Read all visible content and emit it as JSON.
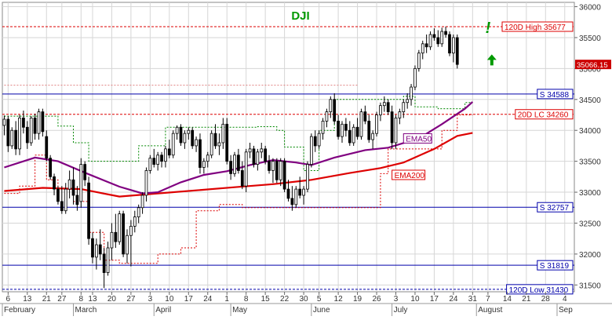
{
  "chart_data": {
    "type": "candlestick",
    "title": "DJI",
    "symbol": "DJI",
    "colors": {
      "title": "#009900",
      "background": "#ffffff",
      "frame": "#888888",
      "grid": "#d6d6d6",
      "bull_body": "#ffffff",
      "bear_body": "#000000",
      "candle_outline": "#000000",
      "ema50": "#800080",
      "ema200": "#dd0000",
      "support_line": "#0000aa",
      "resistance_line": "#dd0000",
      "trail_green": "#008800",
      "trail_red": "#dd0000",
      "arrow": "#009900",
      "price_tag_bg": "#cc0000"
    },
    "y_axis": {
      "min": 31400,
      "max": 36100,
      "ticks": [
        31500,
        32000,
        32500,
        33000,
        33500,
        34000,
        34500,
        35000,
        35500,
        36000
      ],
      "side": "right",
      "grid": true
    },
    "x_axis": {
      "ticks": [
        {
          "label": "6",
          "i": 1
        },
        {
          "label": "13",
          "i": 6
        },
        {
          "label": "21",
          "i": 11
        },
        {
          "label": "27",
          "i": 15
        },
        {
          "label": "8",
          "i": 20
        },
        {
          "label": "13",
          "i": 23
        },
        {
          "label": "20",
          "i": 28
        },
        {
          "label": "27",
          "i": 33
        },
        {
          "label": "3",
          "i": 38
        },
        {
          "label": "10",
          "i": 43
        },
        {
          "label": "17",
          "i": 48
        },
        {
          "label": "24",
          "i": 53
        },
        {
          "label": "1",
          "i": 58
        },
        {
          "label": "8",
          "i": 63
        },
        {
          "label": "15",
          "i": 68
        },
        {
          "label": "22",
          "i": 73
        },
        {
          "label": "30",
          "i": 78
        },
        {
          "label": "5",
          "i": 82
        },
        {
          "label": "12",
          "i": 87
        },
        {
          "label": "19",
          "i": 92
        },
        {
          "label": "26",
          "i": 97
        },
        {
          "label": "3",
          "i": 102
        },
        {
          "label": "10",
          "i": 107
        },
        {
          "label": "17",
          "i": 112
        },
        {
          "label": "24",
          "i": 117
        },
        {
          "label": "31",
          "i": 122
        },
        {
          "label": "7",
          "i": 126
        },
        {
          "label": "14",
          "i": 131
        },
        {
          "label": "21",
          "i": 136
        },
        {
          "label": "28",
          "i": 141
        },
        {
          "label": "4",
          "i": 146
        }
      ],
      "months": [
        {
          "label": "February",
          "i": 0
        },
        {
          "label": "March",
          "i": 18
        },
        {
          "label": "April",
          "i": 39
        },
        {
          "label": "May",
          "i": 59
        },
        {
          "label": "June",
          "i": 80
        },
        {
          "label": "July",
          "i": 101
        },
        {
          "label": "August",
          "i": 123
        },
        {
          "label": "Sep",
          "i": 144
        }
      ],
      "total_slots": 149
    },
    "last_price_label": "35066.15",
    "hlines": [
      {
        "label": "120D High 35677",
        "value": 35677,
        "style": "dashed",
        "color": "#dd0000",
        "label_color": "#dd0000"
      },
      {
        "label": "S 34588",
        "value": 34588,
        "style": "solid",
        "color": "#0000aa",
        "label_color": "#0000aa"
      },
      {
        "label": "20D LC 34260",
        "value": 34260,
        "style": "dashed",
        "color": "#dd0000",
        "label_color": "#dd0000"
      },
      {
        "label": "S 32757",
        "value": 32757,
        "style": "solid",
        "color": "#0000aa",
        "label_color": "#0000aa"
      },
      {
        "label": "S 31819",
        "value": 31819,
        "style": "solid",
        "color": "#0000aa",
        "label_color": "#0000aa"
      },
      {
        "label": "120D Low 31430",
        "value": 31430,
        "style": "dashed",
        "color": "#0000aa",
        "label_color": "#0000aa"
      }
    ],
    "ohlc": [
      [
        34080,
        34240,
        33920,
        34180
      ],
      [
        34180,
        34230,
        33650,
        33750
      ],
      [
        33750,
        34050,
        33700,
        34000
      ],
      [
        34000,
        34150,
        33600,
        33700
      ],
      [
        33700,
        34250,
        33600,
        34200
      ],
      [
        34200,
        34320,
        33950,
        34050
      ],
      [
        34050,
        34150,
        33700,
        33800
      ],
      [
        33800,
        34230,
        33750,
        34200
      ],
      [
        34200,
        34270,
        33850,
        33950
      ],
      [
        33950,
        34350,
        33850,
        34300
      ],
      [
        34300,
        34350,
        33900,
        33980
      ],
      [
        33900,
        34000,
        33500,
        33550
      ],
      [
        33550,
        33600,
        33200,
        33250
      ],
      [
        33250,
        33300,
        32950,
        33050
      ],
      [
        33050,
        33100,
        32800,
        32850
      ],
      [
        32850,
        33100,
        32650,
        32700
      ],
      [
        32700,
        33150,
        32650,
        33050
      ],
      [
        33050,
        33350,
        32900,
        33200
      ],
      [
        33200,
        33400,
        32800,
        32950
      ],
      [
        32950,
        33100,
        32700,
        32800
      ],
      [
        32850,
        33550,
        32750,
        33450
      ],
      [
        33450,
        33500,
        33100,
        33200
      ],
      [
        33150,
        33250,
        32150,
        32250
      ],
      [
        32250,
        32350,
        31850,
        31950
      ],
      [
        31950,
        32250,
        31750,
        32150
      ],
      [
        32150,
        32400,
        31900,
        32000
      ],
      [
        32000,
        32100,
        31450,
        31700
      ],
      [
        31700,
        32200,
        31650,
        32100
      ],
      [
        32100,
        32500,
        31900,
        32350
      ],
      [
        32350,
        32650,
        32100,
        32200
      ],
      [
        32200,
        32700,
        32150,
        32650
      ],
      [
        32650,
        32700,
        31950,
        32000
      ],
      [
        32000,
        32400,
        31850,
        32300
      ],
      [
        32300,
        32550,
        31800,
        32450
      ],
      [
        32450,
        32700,
        32350,
        32600
      ],
      [
        32600,
        32800,
        32500,
        32750
      ],
      [
        32750,
        33000,
        32650,
        32950
      ],
      [
        32950,
        33400,
        32850,
        33350
      ],
      [
        33350,
        33600,
        33300,
        33550
      ],
      [
        33550,
        33700,
        33400,
        33450
      ],
      [
        33450,
        33650,
        33350,
        33600
      ],
      [
        33600,
        33650,
        33400,
        33500
      ],
      [
        33500,
        33750,
        33400,
        33700
      ],
      [
        33700,
        33850,
        33550,
        33600
      ],
      [
        33600,
        34000,
        33550,
        33950
      ],
      [
        33950,
        34080,
        33850,
        34050
      ],
      [
        34050,
        34100,
        33750,
        33800
      ],
      [
        33800,
        34000,
        33700,
        33950
      ],
      [
        33950,
        34050,
        33850,
        34000
      ],
      [
        34000,
        34050,
        33700,
        33750
      ],
      [
        33750,
        33900,
        33650,
        33850
      ],
      [
        33850,
        33950,
        33300,
        33400
      ],
      [
        33400,
        33550,
        33300,
        33500
      ],
      [
        33500,
        33650,
        33400,
        33600
      ],
      [
        33600,
        34000,
        33550,
        33950
      ],
      [
        33950,
        34100,
        33700,
        33750
      ],
      [
        33750,
        33950,
        33600,
        33800
      ],
      [
        33800,
        34200,
        33700,
        34100
      ],
      [
        34100,
        34200,
        33450,
        33500
      ],
      [
        33500,
        33600,
        33200,
        33300
      ],
      [
        33300,
        33650,
        33250,
        33600
      ],
      [
        33600,
        33700,
        33300,
        33350
      ],
      [
        33350,
        33500,
        33050,
        33100
      ],
      [
        33100,
        33700,
        33000,
        33650
      ],
      [
        33650,
        33800,
        33550,
        33700
      ],
      [
        33700,
        33750,
        33400,
        33450
      ],
      [
        33450,
        33700,
        33350,
        33650
      ],
      [
        33650,
        33800,
        33550,
        33700
      ],
      [
        33700,
        33750,
        33450,
        33500
      ],
      [
        33500,
        33600,
        33300,
        33350
      ],
      [
        33350,
        33550,
        33150,
        33500
      ],
      [
        33500,
        33550,
        33150,
        33200
      ],
      [
        33200,
        33550,
        33100,
        33500
      ],
      [
        33500,
        33550,
        33000,
        33050
      ],
      [
        33050,
        33200,
        32850,
        32900
      ],
      [
        32900,
        33100,
        32700,
        32800
      ],
      [
        32800,
        33100,
        32750,
        33050
      ],
      [
        33050,
        33250,
        32900,
        32950
      ],
      [
        32950,
        33100,
        32800,
        33050
      ],
      [
        33050,
        33500,
        33000,
        33450
      ],
      [
        33450,
        33950,
        33400,
        33900
      ],
      [
        33900,
        34000,
        33650,
        33750
      ],
      [
        33750,
        34000,
        33700,
        33950
      ],
      [
        33950,
        34200,
        33850,
        34150
      ],
      [
        34150,
        34350,
        34050,
        34300
      ],
      [
        34300,
        34550,
        34200,
        34500
      ],
      [
        34500,
        34600,
        34100,
        34150
      ],
      [
        34150,
        34250,
        33850,
        33900
      ],
      [
        33900,
        34150,
        33800,
        34100
      ],
      [
        34100,
        34200,
        33900,
        34000
      ],
      [
        34000,
        34150,
        33750,
        33800
      ],
      [
        33800,
        34100,
        33750,
        34050
      ],
      [
        34050,
        34200,
        33850,
        33900
      ],
      [
        33900,
        34350,
        33850,
        34300
      ],
      [
        34300,
        34400,
        34100,
        34150
      ],
      [
        34150,
        34250,
        33800,
        33850
      ],
      [
        33850,
        34000,
        33700,
        33950
      ],
      [
        33950,
        34300,
        33900,
        34250
      ],
      [
        34250,
        34450,
        34150,
        34400
      ],
      [
        34400,
        34550,
        34300,
        34450
      ],
      [
        34450,
        34500,
        34250,
        34300
      ],
      [
        34300,
        34400,
        33700,
        33800
      ],
      [
        33800,
        34250,
        33700,
        34200
      ],
      [
        34200,
        34350,
        34100,
        34300
      ],
      [
        34300,
        34500,
        34200,
        34450
      ],
      [
        34450,
        34600,
        34350,
        34500
      ],
      [
        34500,
        34750,
        34400,
        34700
      ],
      [
        34700,
        35050,
        34650,
        35000
      ],
      [
        35000,
        35300,
        34950,
        35250
      ],
      [
        35250,
        35450,
        35150,
        35400
      ],
      [
        35400,
        35550,
        35250,
        35350
      ],
      [
        35350,
        35600,
        35300,
        35550
      ],
      [
        35550,
        35650,
        35450,
        35500
      ],
      [
        35500,
        35620,
        35350,
        35400
      ],
      [
        35400,
        35660,
        35350,
        35600
      ],
      [
        35600,
        35677,
        35500,
        35550
      ],
      [
        35550,
        35600,
        35200,
        35250
      ],
      [
        35250,
        35550,
        35100,
        35500
      ],
      [
        35500,
        35550,
        35000,
        35066.15
      ]
    ],
    "ema50": [
      [
        0,
        33400
      ],
      [
        8,
        33560
      ],
      [
        14,
        33500
      ],
      [
        22,
        33290
      ],
      [
        30,
        33090
      ],
      [
        36,
        32980
      ],
      [
        40,
        33000
      ],
      [
        46,
        33160
      ],
      [
        52,
        33280
      ],
      [
        58,
        33340
      ],
      [
        64,
        33440
      ],
      [
        70,
        33520
      ],
      [
        76,
        33480
      ],
      [
        80,
        33440
      ],
      [
        86,
        33560
      ],
      [
        94,
        33680
      ],
      [
        100,
        33720
      ],
      [
        108,
        33870
      ],
      [
        114,
        34100
      ],
      [
        120,
        34350
      ],
      [
        122,
        34460
      ]
    ],
    "ema200": [
      [
        0,
        33020
      ],
      [
        10,
        33070
      ],
      [
        20,
        33050
      ],
      [
        30,
        32930
      ],
      [
        40,
        32980
      ],
      [
        50,
        33030
      ],
      [
        60,
        33080
      ],
      [
        70,
        33130
      ],
      [
        80,
        33200
      ],
      [
        90,
        33310
      ],
      [
        98,
        33390
      ],
      [
        104,
        33480
      ],
      [
        112,
        33700
      ],
      [
        118,
        33910
      ],
      [
        122,
        33960
      ]
    ],
    "trail_green": [
      [
        0,
        34230
      ],
      [
        14,
        34230
      ],
      [
        14,
        34070
      ],
      [
        18,
        34070
      ],
      [
        18,
        33800
      ],
      [
        22,
        33800
      ],
      [
        22,
        33500
      ],
      [
        35,
        33500
      ],
      [
        35,
        33750
      ],
      [
        42,
        33750
      ],
      [
        42,
        34050
      ],
      [
        66,
        34050
      ],
      [
        66,
        34060
      ],
      [
        71,
        34060
      ],
      [
        71,
        34000
      ],
      [
        73,
        34000
      ],
      [
        73,
        33730
      ],
      [
        78,
        33730
      ],
      [
        78,
        33350
      ],
      [
        82,
        33350
      ],
      [
        82,
        34000
      ],
      [
        86,
        34000
      ],
      [
        86,
        34500
      ],
      [
        104,
        34500
      ],
      [
        104,
        34550
      ],
      [
        107,
        34550
      ],
      [
        107,
        34380
      ],
      [
        113,
        34380
      ],
      [
        113,
        34350
      ],
      [
        120,
        34350
      ],
      [
        120,
        34450
      ],
      [
        122,
        34450
      ]
    ],
    "trail_red": [
      [
        0,
        32980
      ],
      [
        4,
        32980
      ],
      [
        4,
        33100
      ],
      [
        8,
        33100
      ],
      [
        8,
        33600
      ],
      [
        11,
        33600
      ],
      [
        11,
        33200
      ],
      [
        14,
        33200
      ],
      [
        14,
        33050
      ],
      [
        18,
        33050
      ],
      [
        18,
        32850
      ],
      [
        22,
        32850
      ],
      [
        22,
        32350
      ],
      [
        26,
        32350
      ],
      [
        26,
        31900
      ],
      [
        30,
        31900
      ],
      [
        30,
        31850
      ],
      [
        40,
        31850
      ],
      [
        40,
        32000
      ],
      [
        46,
        32000
      ],
      [
        46,
        32100
      ],
      [
        50,
        32100
      ],
      [
        50,
        32700
      ],
      [
        56,
        32700
      ],
      [
        56,
        32800
      ],
      [
        62,
        32800
      ],
      [
        62,
        32750
      ],
      [
        98,
        32750
      ],
      [
        98,
        33300
      ],
      [
        100,
        33300
      ],
      [
        100,
        33700
      ],
      [
        114,
        33700
      ],
      [
        114,
        34000
      ],
      [
        118,
        34000
      ],
      [
        118,
        34250
      ],
      [
        122,
        34250
      ]
    ],
    "ref_dashed_line": {
      "from": 0,
      "to": 92,
      "value": 34730
    },
    "series_labels": [
      {
        "name": "EMA50",
        "i": 104,
        "value": 33870,
        "color": "#800080"
      },
      {
        "name": "EMA200",
        "i": 101,
        "value": 33280,
        "color": "#dd0000"
      }
    ],
    "annotations": {
      "exclamation": {
        "text": "!",
        "i": 126,
        "value": 35650,
        "color": "#009900"
      },
      "arrow_up": {
        "i": 127,
        "value": 35140,
        "color": "#009900"
      }
    }
  }
}
